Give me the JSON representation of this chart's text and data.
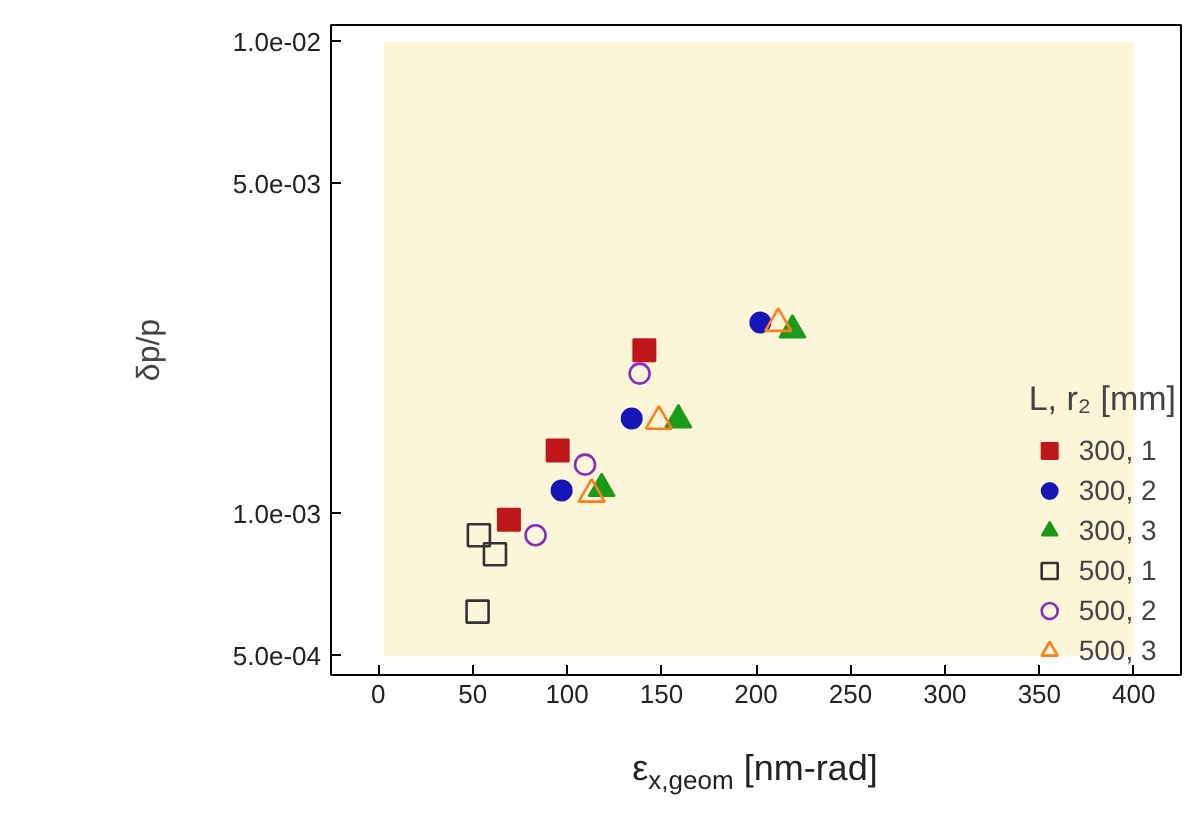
{
  "chart_data": {
    "type": "scatter",
    "xlabel": "ε$_{x,geom}$ [nm-rad]",
    "ylabel": "δp/p",
    "legend_title": "L, r₂ [mm]",
    "xlim": [
      -25,
      425
    ],
    "ylim": [
      0.000455,
      0.01085
    ],
    "log": "y",
    "xticks": [
      0,
      50,
      100,
      150,
      200,
      250,
      300,
      350,
      400
    ],
    "yticks": [
      {
        "value": 0.0005,
        "label": "5.0e-04"
      },
      {
        "value": 0.001,
        "label": "1.0e-03"
      },
      {
        "value": 0.005,
        "label": "5.0e-03"
      },
      {
        "value": 0.01,
        "label": "1.0e-02"
      }
    ],
    "grid": false,
    "legend": "bottom right",
    "bands": [
      {
        "axis": "x",
        "from": 3,
        "to": 400,
        "label": null,
        "color": "#fdf6d8"
      }
    ],
    "series": [
      {
        "name": "300, 1",
        "color": "#c0171c",
        "marker": "square",
        "x": [
          69.2,
          95.0,
          140.9
        ],
        "values": [
          0.00097,
          0.00136,
          0.00222
        ]
      },
      {
        "name": "300, 2",
        "color": "#1616b8",
        "marker": "circle",
        "x": [
          97.1,
          134.2,
          202.3
        ],
        "values": [
          0.00112,
          0.00159,
          0.00254
        ]
      },
      {
        "name": "300, 3",
        "color": "#1a9a1a",
        "marker": "triangle",
        "x": [
          118.3,
          158.9,
          219.3
        ],
        "values": [
          0.00113,
          0.00158,
          0.00245
        ]
      },
      {
        "name": "500, 1",
        "color": "#333333",
        "marker": "square-open",
        "x": [
          53.3,
          61.8,
          52.6
        ],
        "values": [
          0.0009,
          0.00082,
          0.00062
        ]
      },
      {
        "name": "500, 2",
        "color": "#8a2bc0",
        "marker": "circle-open",
        "x": [
          83.3,
          109.5,
          138.4
        ],
        "values": [
          0.0009,
          0.00127,
          0.00198
        ]
      },
      {
        "name": "500, 3",
        "color": "#ff7f1e",
        "marker": "triangle-open",
        "x": [
          113.0,
          148.6,
          211.8
        ],
        "values": [
          0.0011,
          0.00157,
          0.00253
        ]
      }
    ]
  }
}
